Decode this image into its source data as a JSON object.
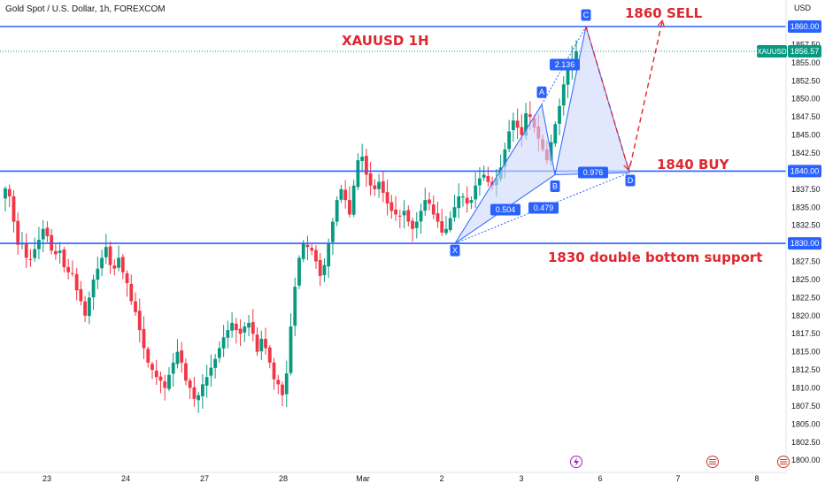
{
  "header": {
    "symbol_title": "Gold Spot / U.S. Dollar, 1h, FOREXCOM"
  },
  "colors": {
    "up": "#089981",
    "down": "#f23645",
    "level": "#2962ff",
    "anno": "#e0262f",
    "pattern_fill": "#cdd9fb",
    "point_bg": "#2962ff",
    "price_tag": "#089981"
  },
  "axis": {
    "currency": "USD",
    "y_ticks": [
      "1857.50",
      "1855.00",
      "1852.50",
      "1850.00",
      "1847.50",
      "1845.00",
      "1842.50",
      "1837.50",
      "1835.00",
      "1832.50",
      "1827.50",
      "1825.00",
      "1822.50",
      "1820.00",
      "1817.50",
      "1815.00",
      "1812.50",
      "1810.00",
      "1807.50",
      "1805.00",
      "1802.50",
      "1800.00"
    ],
    "x_ticks": [
      "23",
      "24",
      "27",
      "28",
      "Mar",
      "2",
      "3",
      "6",
      "7",
      "8"
    ]
  },
  "level_tags": [
    "1860.00",
    "1840.00",
    "1830.00"
  ],
  "price_tag": {
    "symbol": "XAUUSD",
    "value": "1856.57"
  },
  "annotations": {
    "chart_title": "XAUUSD 1H",
    "sell": "1860 SELL",
    "buy": "1840 BUY",
    "support": "1830 double bottom support"
  },
  "pattern": {
    "points": [
      "X",
      "A",
      "B",
      "C",
      "D"
    ],
    "ratios": [
      "0.504",
      "0.479",
      "2.136",
      "0.976"
    ]
  },
  "chart_data": {
    "type": "candlestick",
    "title": "Gold Spot / U.S. Dollar, 1h, FOREXCOM",
    "ylim": [
      1799,
      1864
    ],
    "y_scale": "linear",
    "x_categories": [
      "23",
      "24",
      "27",
      "28",
      "Mar",
      "2",
      "3",
      "6",
      "7",
      "8"
    ],
    "levels": [
      1860.0,
      1840.0,
      1830.0
    ],
    "last_price": 1856.57,
    "harmonic_pattern": {
      "X": 1830.0,
      "A": 1849.2,
      "B": 1839.5,
      "C": 1860.0,
      "D": 1839.8,
      "XB": 0.504,
      "XD": 0.479,
      "BC": 2.136,
      "AD": 0.976
    },
    "projection": {
      "from": 1860.0,
      "to": 1840.0,
      "rebound_to": 1858.0
    },
    "closes": [
      1837.6,
      1836.5,
      1833.0,
      1829.8,
      1830.0,
      1828.0,
      1827.8,
      1829.2,
      1830.5,
      1832.0,
      1831.0,
      1829.0,
      1828.5,
      1829.0,
      1826.7,
      1826.0,
      1825.8,
      1823.5,
      1822.0,
      1820.0,
      1822.5,
      1825.0,
      1826.5,
      1828.0,
      1829.5,
      1827.0,
      1826.5,
      1828.0,
      1826.0,
      1824.5,
      1822.0,
      1820.5,
      1818.0,
      1815.5,
      1813.5,
      1812.5,
      1811.5,
      1811.0,
      1810.0,
      1811.8,
      1813.5,
      1815.0,
      1813.5,
      1811.0,
      1810.0,
      1808.5,
      1809.0,
      1810.5,
      1811.5,
      1812.8,
      1814.0,
      1815.5,
      1817.0,
      1818.0,
      1819.0,
      1818.0,
      1817.5,
      1818.5,
      1819.0,
      1817.5,
      1815.0,
      1816.8,
      1815.5,
      1813.5,
      1811.2,
      1810.5,
      1809.0,
      1812.0,
      1818.5,
      1824.0,
      1828.0,
      1830.0,
      1829.5,
      1829.0,
      1827.5,
      1825.5,
      1827.0,
      1830.0,
      1833.0,
      1836.0,
      1837.5,
      1836.0,
      1834.0,
      1838.0,
      1841.5,
      1842.0,
      1839.5,
      1838.0,
      1837.5,
      1838.5,
      1837.0,
      1835.5,
      1834.5,
      1834.0,
      1833.8,
      1834.5,
      1833.0,
      1832.0,
      1833.0,
      1834.5,
      1836.0,
      1835.5,
      1834.0,
      1833.0,
      1831.5,
      1832.0,
      1833.5,
      1835.0,
      1836.5,
      1836.5,
      1835.5,
      1836.0,
      1838.0,
      1839.0,
      1839.5,
      1838.5,
      1838.0,
      1839.0,
      1840.5,
      1843.0,
      1845.5,
      1847.0,
      1846.0,
      1845.0,
      1848.0,
      1847.5,
      1846.0,
      1844.5,
      1843.0,
      1841.5,
      1844.0,
      1846.5,
      1849.0,
      1852.0,
      1854.0,
      1855.5,
      1856.57
    ]
  }
}
